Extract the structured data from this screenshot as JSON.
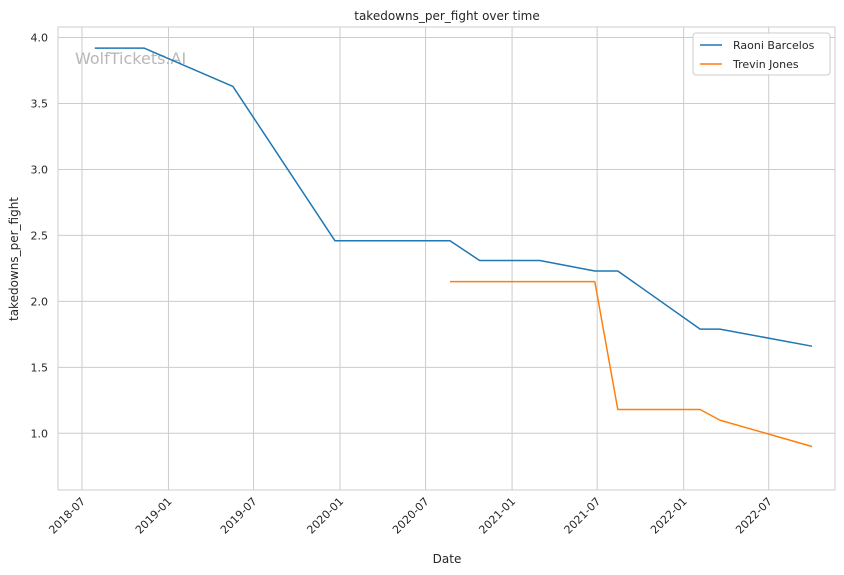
{
  "chart_data": {
    "type": "line",
    "title": "takedowns_per_fight over time",
    "xlabel": "Date",
    "ylabel": "takedowns_per_fight",
    "x_scale": "date",
    "xlim": [
      "2018-05-11",
      "2022-11-19"
    ],
    "ylim": [
      0.57,
      4.08
    ],
    "x_ticks": [
      "2018-07",
      "2019-01",
      "2019-07",
      "2020-01",
      "2020-07",
      "2021-01",
      "2021-07",
      "2022-01",
      "2022-07"
    ],
    "y_ticks": [
      1.0,
      1.5,
      2.0,
      2.5,
      3.0,
      3.5,
      4.0
    ],
    "y_tick_labels": [
      "1.0",
      "1.5",
      "2.0",
      "2.5",
      "3.0",
      "3.5",
      "4.0"
    ],
    "grid": true,
    "legend_position": "top-right",
    "watermark": "WolfTickets.AI",
    "series": [
      {
        "name": "Raoni Barcelos",
        "color": "#1f77b4",
        "points": [
          {
            "x": "2018-07-28",
            "y": 3.92
          },
          {
            "x": "2018-11-10",
            "y": 3.92
          },
          {
            "x": "2019-05-18",
            "y": 3.63
          },
          {
            "x": "2019-12-21",
            "y": 2.46
          },
          {
            "x": "2020-08-22",
            "y": 2.46
          },
          {
            "x": "2020-10-24",
            "y": 2.31
          },
          {
            "x": "2021-03-01",
            "y": 2.31
          },
          {
            "x": "2021-06-26",
            "y": 2.23
          },
          {
            "x": "2021-08-14",
            "y": 2.23
          },
          {
            "x": "2022-02-05",
            "y": 1.79
          },
          {
            "x": "2022-03-19",
            "y": 1.79
          },
          {
            "x": "2022-10-01",
            "y": 1.66
          }
        ]
      },
      {
        "name": "Trevin Jones",
        "color": "#ff7f0e",
        "points": [
          {
            "x": "2020-08-22",
            "y": 2.15
          },
          {
            "x": "2021-06-26",
            "y": 2.15
          },
          {
            "x": "2021-08-14",
            "y": 1.18
          },
          {
            "x": "2022-02-05",
            "y": 1.18
          },
          {
            "x": "2022-03-19",
            "y": 1.1
          },
          {
            "x": "2022-10-01",
            "y": 0.9
          }
        ]
      }
    ]
  }
}
